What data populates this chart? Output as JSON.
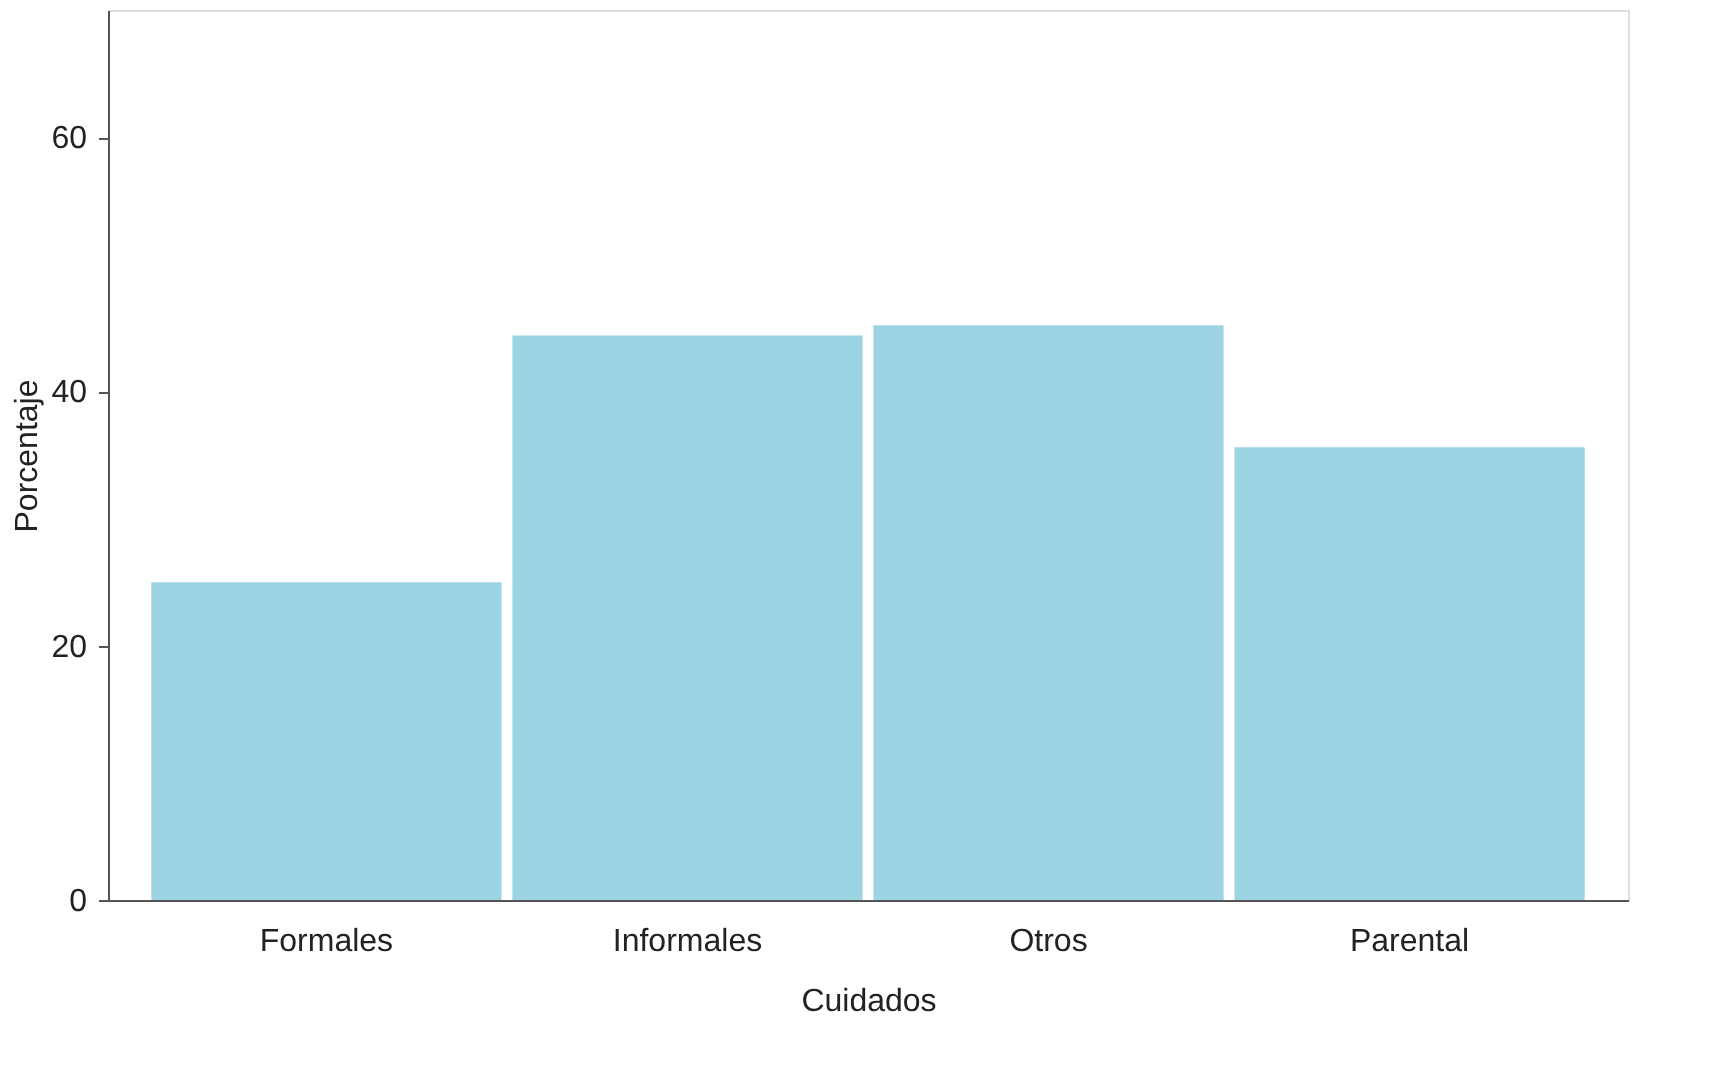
{
  "chart_data": {
    "type": "bar",
    "xlabel": "Cuidados",
    "ylabel": "Porcentaje",
    "categories": [
      "Formales",
      "Informales",
      "Otros",
      "Parental"
    ],
    "values": [
      25.0,
      44.4,
      45.2,
      35.6
    ],
    "color": "#9dd4e3",
    "ylim": [
      0,
      70
    ],
    "yticks": [
      0,
      20,
      40,
      60
    ],
    "grid": false
  }
}
